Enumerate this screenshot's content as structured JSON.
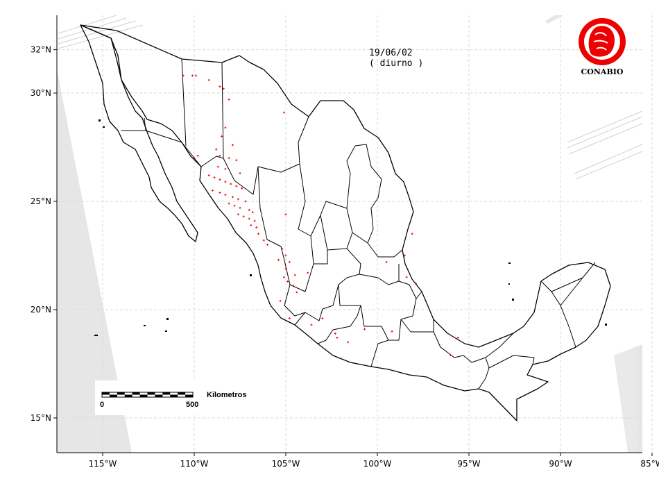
{
  "map": {
    "date": "19/06/02",
    "period": "( diurno )",
    "logo_text": "CONABIO",
    "scale": {
      "label": "Kilometros",
      "start": "0",
      "end": "500"
    },
    "x_ticks": [
      {
        "lon": -115,
        "label": "115°W"
      },
      {
        "lon": -110,
        "label": "110°W"
      },
      {
        "lon": -105,
        "label": "105°W"
      },
      {
        "lon": -100,
        "label": "100°W"
      },
      {
        "lon": -95,
        "label": "95°W"
      },
      {
        "lon": -90,
        "label": "90°W"
      },
      {
        "lon": -85,
        "label": "85°W"
      }
    ],
    "y_ticks": [
      {
        "lat": 32,
        "label": "32°N"
      },
      {
        "lat": 30,
        "label": "30°N"
      },
      {
        "lat": 25,
        "label": "25°N"
      },
      {
        "lat": 20,
        "label": "20°N"
      },
      {
        "lat": 15,
        "label": "15°N"
      }
    ],
    "colors": {
      "fire": "#ee0000",
      "logo": "#ee0000",
      "swath": "#e6e6e6"
    },
    "hotspots": [
      [
        -110.6,
        30.8
      ],
      [
        -110.1,
        30.8
      ],
      [
        -109.9,
        30.8
      ],
      [
        -109.2,
        30.6
      ],
      [
        -108.6,
        30.3
      ],
      [
        -108.4,
        30.2
      ],
      [
        -108.1,
        29.7
      ],
      [
        -105.1,
        29.1
      ],
      [
        -108.3,
        28.4
      ],
      [
        -108.5,
        28.0
      ],
      [
        -107.9,
        27.6
      ],
      [
        -108.8,
        27.4
      ],
      [
        -108.6,
        27.1
      ],
      [
        -108.1,
        27.0
      ],
      [
        -107.7,
        26.9
      ],
      [
        -109.8,
        27.1
      ],
      [
        -110.0,
        27.0
      ],
      [
        -108.7,
        26.6
      ],
      [
        -108.3,
        26.5
      ],
      [
        -107.5,
        26.3
      ],
      [
        -109.2,
        26.2
      ],
      [
        -108.9,
        26.1
      ],
      [
        -108.6,
        26.0
      ],
      [
        -108.3,
        25.9
      ],
      [
        -108.0,
        25.8
      ],
      [
        -107.7,
        25.7
      ],
      [
        -107.4,
        25.6
      ],
      [
        -109.0,
        25.5
      ],
      [
        -108.6,
        25.4
      ],
      [
        -108.3,
        25.3
      ],
      [
        -107.9,
        25.2
      ],
      [
        -107.6,
        25.1
      ],
      [
        -107.2,
        25.0
      ],
      [
        -108.1,
        24.9
      ],
      [
        -107.8,
        24.8
      ],
      [
        -107.5,
        24.7
      ],
      [
        -107.0,
        24.6
      ],
      [
        -106.8,
        24.5
      ],
      [
        -107.6,
        24.4
      ],
      [
        -107.3,
        24.3
      ],
      [
        -107.0,
        24.2
      ],
      [
        -106.7,
        24.1
      ],
      [
        -106.9,
        23.9
      ],
      [
        -106.6,
        23.8
      ],
      [
        -106.5,
        23.5
      ],
      [
        -106.2,
        23.2
      ],
      [
        -105.0,
        24.4
      ],
      [
        -105.2,
        22.8
      ],
      [
        -105.0,
        22.5
      ],
      [
        -104.8,
        22.2
      ],
      [
        -105.4,
        22.3
      ],
      [
        -105.0,
        21.9
      ],
      [
        -104.5,
        21.6
      ],
      [
        -103.8,
        21.7
      ],
      [
        -105.1,
        21.5
      ],
      [
        -104.9,
        21.3
      ],
      [
        -104.6,
        21.1
      ],
      [
        -104.4,
        20.8
      ],
      [
        -105.3,
        20.4
      ],
      [
        -104.8,
        19.6
      ],
      [
        -103.6,
        19.3
      ],
      [
        -102.3,
        18.9
      ],
      [
        -102.2,
        18.7
      ],
      [
        -101.6,
        18.5
      ],
      [
        -98.1,
        23.5
      ],
      [
        -98.5,
        22.5
      ],
      [
        -99.5,
        22.2
      ],
      [
        -98.4,
        21.5
      ],
      [
        -97.9,
        21.2
      ],
      [
        -100.7,
        19.1
      ],
      [
        -99.2,
        19.0
      ],
      [
        -95.6,
        18.7
      ],
      [
        -96.0,
        17.9
      ],
      [
        -103.0,
        19.6
      ],
      [
        -106.0,
        23.0
      ]
    ]
  }
}
